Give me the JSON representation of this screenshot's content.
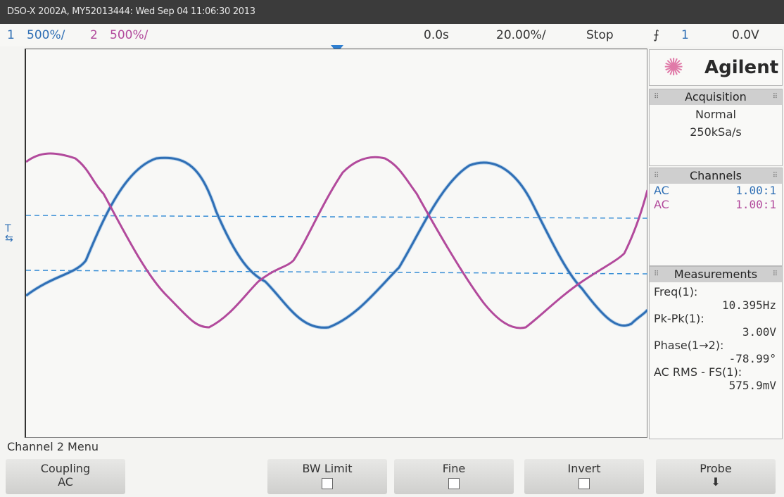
{
  "titlebar": "DSO-X 2002A, MY52013444: Wed Sep 04 11:06:30 2013",
  "status": {
    "ch1_num": "1",
    "ch1_scale": "500%/",
    "ch2_num": "2",
    "ch2_scale": "500%/",
    "delay": "0.0s",
    "timebase": "20.00%/",
    "run_state": "Stop",
    "trig_icon": "⨍",
    "trig_src": "1",
    "trig_level": "0.0V"
  },
  "side_marker": "T",
  "panel": {
    "brand": "Agilent",
    "acquisition_hdr": "Acquisition",
    "acq_mode": "Normal",
    "acq_rate": "250kSa/s",
    "channels_hdr": "Channels",
    "ch1_coupling": "AC",
    "ch1_probe": "1.00:1",
    "ch2_coupling": "AC",
    "ch2_probe": "1.00:1",
    "measurements_hdr": "Measurements",
    "m1_label": "Freq(1):",
    "m1_value": "10.395Hz",
    "m2_label": "Pk-Pk(1):",
    "m2_value": "3.00V",
    "m3_label": "Phase(1→2):",
    "m3_value": "-78.99°",
    "m4_label": "AC RMS - FS(1):",
    "m4_value": "575.9mV"
  },
  "menu_title": "Channel 2 Menu",
  "softkeys": {
    "coupling_label": "Coupling",
    "coupling_value": "AC",
    "bwlimit_label": "BW Limit",
    "fine_label": "Fine",
    "invert_label": "Invert",
    "probe_label": "Probe"
  },
  "colors": {
    "ch1": "#2f6fb5",
    "ch2": "#b24a9c"
  }
}
